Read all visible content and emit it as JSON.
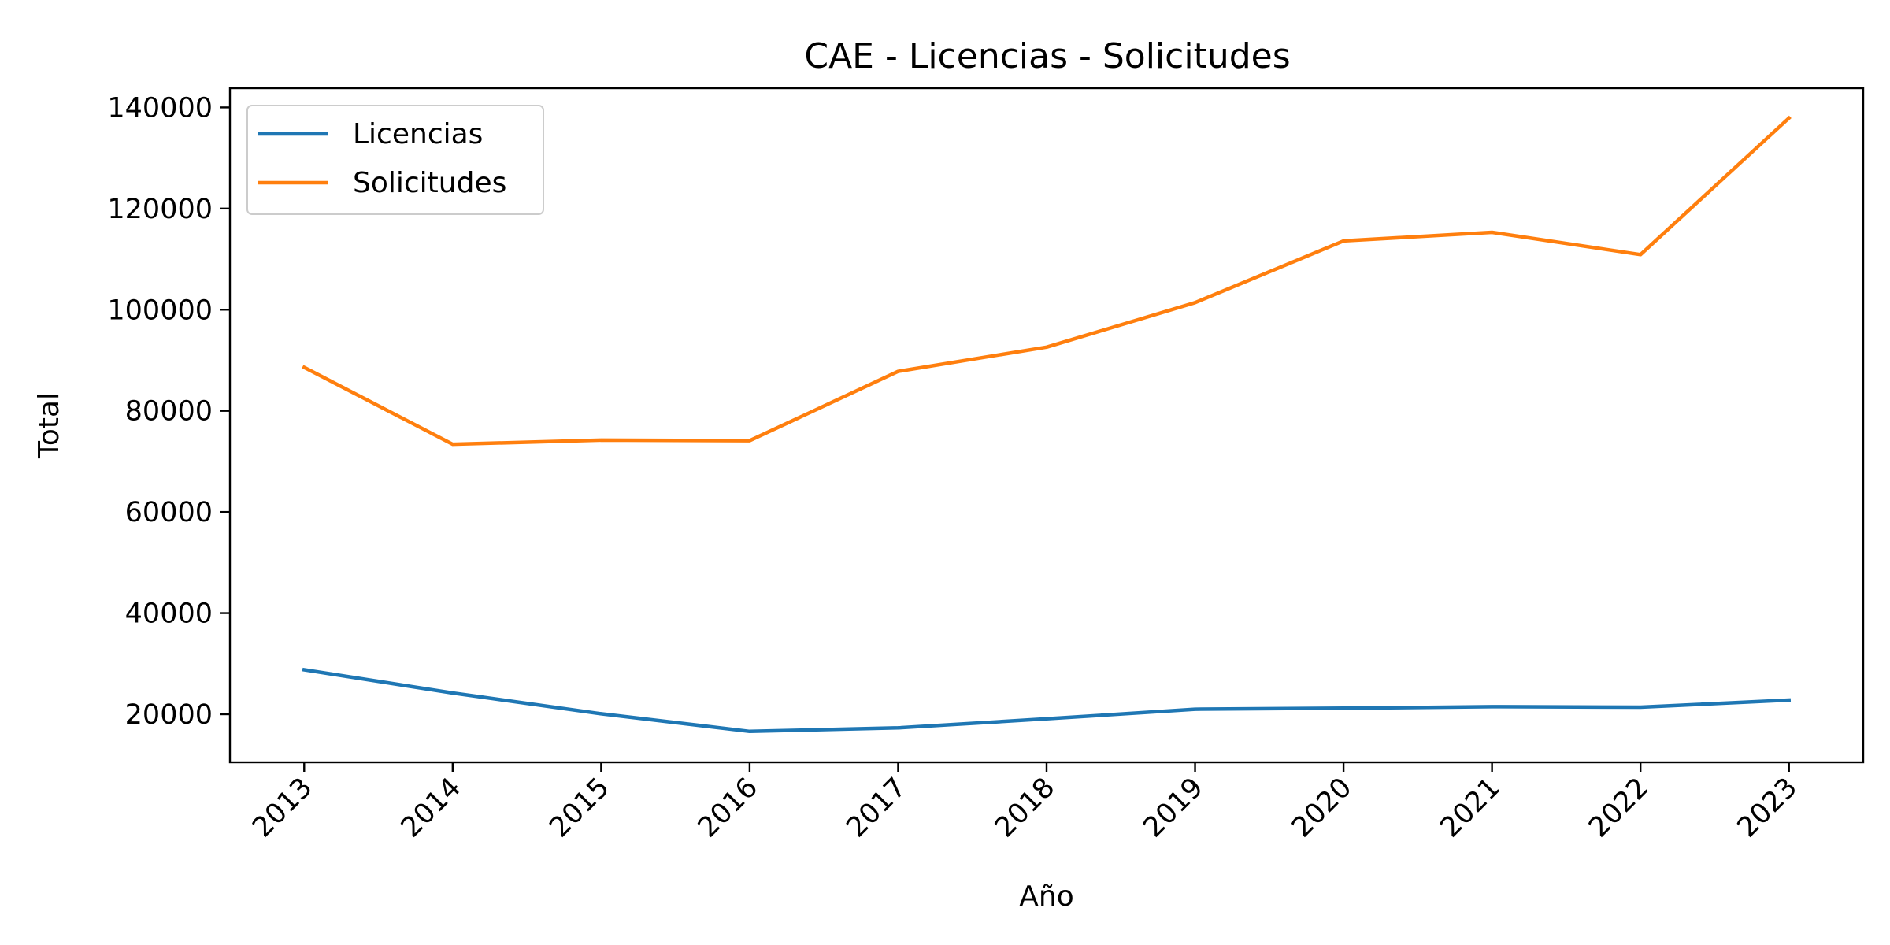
{
  "chart_data": {
    "type": "line",
    "title": "CAE - Licencias - Solicitudes",
    "xlabel": "Año",
    "ylabel": "Total",
    "x": [
      "2013",
      "2014",
      "2015",
      "2016",
      "2017",
      "2018",
      "2019",
      "2020",
      "2021",
      "2022",
      "2023"
    ],
    "xlim": [
      2012.5,
      2023.5
    ],
    "ylim": [
      10500,
      143800
    ],
    "yticks": [
      20000,
      40000,
      60000,
      80000,
      100000,
      120000,
      140000
    ],
    "grid": false,
    "legend": "upper-left",
    "series": [
      {
        "name": "Licencias",
        "color": "#1f77b4",
        "values": [
          28800,
          24200,
          20100,
          16600,
          17300,
          19100,
          21000,
          21200,
          21500,
          21400,
          22800
        ]
      },
      {
        "name": "Solicitudes",
        "color": "#ff7f0e",
        "values": [
          88600,
          73400,
          74200,
          74100,
          87800,
          92600,
          101400,
          113600,
          115300,
          110900,
          137900
        ]
      }
    ]
  }
}
